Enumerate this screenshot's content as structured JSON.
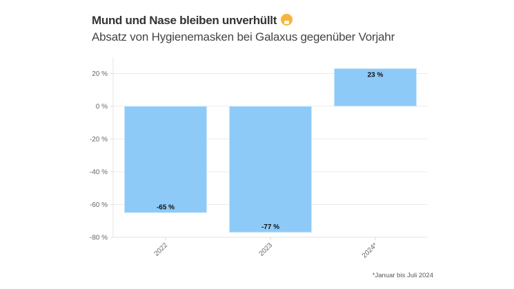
{
  "chart_data": {
    "type": "bar",
    "title": "Mund und Nase bleiben unverhüllt",
    "title_icon": "face-with-medical-mask-emoji",
    "subtitle": "Absatz von Hygienemasken bei Galaxus gegenüber Vorjahr",
    "categories": [
      "2022",
      "2023",
      "2024*"
    ],
    "values": [
      -65,
      -77,
      23
    ],
    "data_labels": [
      "-65 %",
      "-77 %",
      "23 %"
    ],
    "xlabel": "",
    "ylabel": "",
    "ylim": [
      -80,
      30
    ],
    "yticks": [
      20,
      0,
      -20,
      -40,
      -60,
      -80
    ],
    "ytick_labels": [
      "20 %",
      "0 %",
      "-20 %",
      "-40 %",
      "-60 %",
      "-80 %"
    ],
    "grid": true,
    "bar_color": "#8ecaf7",
    "footnote": "*Januar bis Juli 2024"
  }
}
